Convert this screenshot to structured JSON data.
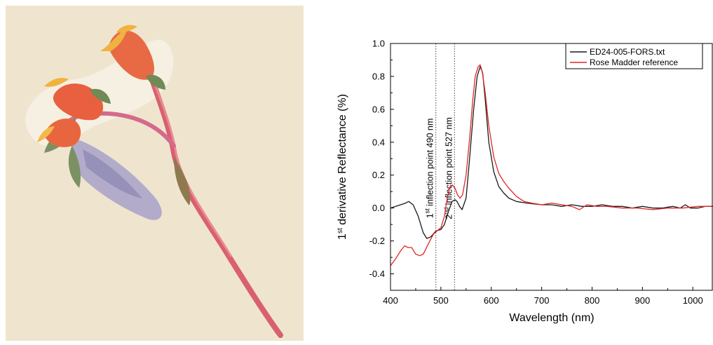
{
  "painting": {
    "subject": "botanical watercolour of red flowering plant",
    "colors": {
      "paper": "#efe5cf",
      "stem": "#d9606e",
      "flower": "#e86a45",
      "bud": "#9f9bc1",
      "leaf": "#7c9163"
    }
  },
  "chart_data": {
    "type": "line",
    "xlabel": "Wavelength (nm)",
    "ylabel_parts": {
      "sup": "st",
      "num": "1",
      "rest": " derivative Reflectance (%)"
    },
    "xlim": [
      400,
      1040
    ],
    "ylim": [
      -0.5,
      1.0
    ],
    "x_ticks": [
      400,
      500,
      600,
      700,
      800,
      900,
      1000
    ],
    "y_ticks": [
      -0.4,
      -0.2,
      0.0,
      0.2,
      0.4,
      0.6,
      0.8,
      1.0
    ],
    "y_tick_labels": [
      "-0.4",
      "-0.2",
      "0.0",
      "0.2",
      "0.4",
      "0.6",
      "0.8",
      "1.0"
    ],
    "legend_position": "top-right",
    "series": [
      {
        "name": "ED24-005-FORS.txt",
        "color": "#1a1a1a",
        "x": [
          400,
          420,
          430,
          436,
          445,
          455,
          465,
          472,
          480,
          490,
          500,
          507,
          515,
          522,
          528,
          532,
          537,
          542,
          550,
          557,
          565,
          572,
          578,
          583,
          588,
          595,
          605,
          615,
          625,
          635,
          650,
          670,
          700,
          720,
          740,
          760,
          780,
          800,
          820,
          840,
          860,
          880,
          900,
          920,
          940,
          960,
          975,
          985,
          995,
          1010,
          1025,
          1040
        ],
        "y": [
          0.0,
          0.02,
          0.03,
          0.04,
          0.02,
          -0.05,
          -0.15,
          -0.185,
          -0.175,
          -0.14,
          -0.13,
          -0.1,
          -0.02,
          0.04,
          0.05,
          0.04,
          0.01,
          -0.01,
          0.06,
          0.3,
          0.6,
          0.8,
          0.86,
          0.82,
          0.66,
          0.4,
          0.22,
          0.13,
          0.09,
          0.06,
          0.04,
          0.03,
          0.02,
          0.02,
          0.01,
          0.02,
          0.01,
          0.01,
          0.02,
          0.01,
          0.01,
          0.0,
          0.01,
          0.0,
          0.0,
          0.01,
          0.0,
          0.02,
          0.0,
          0.0,
          0.01,
          0.01
        ]
      },
      {
        "name": "Rose Madder reference",
        "color": "#e0262a",
        "x": [
          400,
          410,
          420,
          428,
          435,
          442,
          450,
          458,
          465,
          470,
          478,
          485,
          492,
          500,
          507,
          512,
          518,
          523,
          528,
          533,
          538,
          543,
          550,
          557,
          563,
          568,
          574,
          578,
          582,
          588,
          595,
          605,
          615,
          625,
          635,
          650,
          665,
          680,
          700,
          720,
          740,
          760,
          775,
          790,
          810,
          830,
          860,
          890,
          920,
          950,
          980,
          1010,
          1040
        ],
        "y": [
          -0.35,
          -0.31,
          -0.26,
          -0.23,
          -0.24,
          -0.24,
          -0.28,
          -0.29,
          -0.28,
          -0.25,
          -0.2,
          -0.16,
          -0.14,
          -0.12,
          -0.05,
          0.05,
          0.13,
          0.14,
          0.12,
          0.08,
          0.06,
          0.08,
          0.2,
          0.42,
          0.65,
          0.8,
          0.86,
          0.87,
          0.83,
          0.7,
          0.5,
          0.31,
          0.21,
          0.16,
          0.12,
          0.07,
          0.04,
          0.03,
          0.02,
          0.03,
          0.02,
          0.01,
          -0.01,
          0.02,
          0.01,
          0.01,
          0.0,
          0.0,
          -0.01,
          0.0,
          0.0,
          0.01,
          0.01
        ]
      }
    ],
    "annotations": [
      {
        "x": 490,
        "num": "1",
        "sup": "st",
        "rest": " inflection point 490 nm"
      },
      {
        "x": 527,
        "num": "2",
        "sup": "nd",
        "rest": " inflection point 527 nm"
      }
    ]
  }
}
